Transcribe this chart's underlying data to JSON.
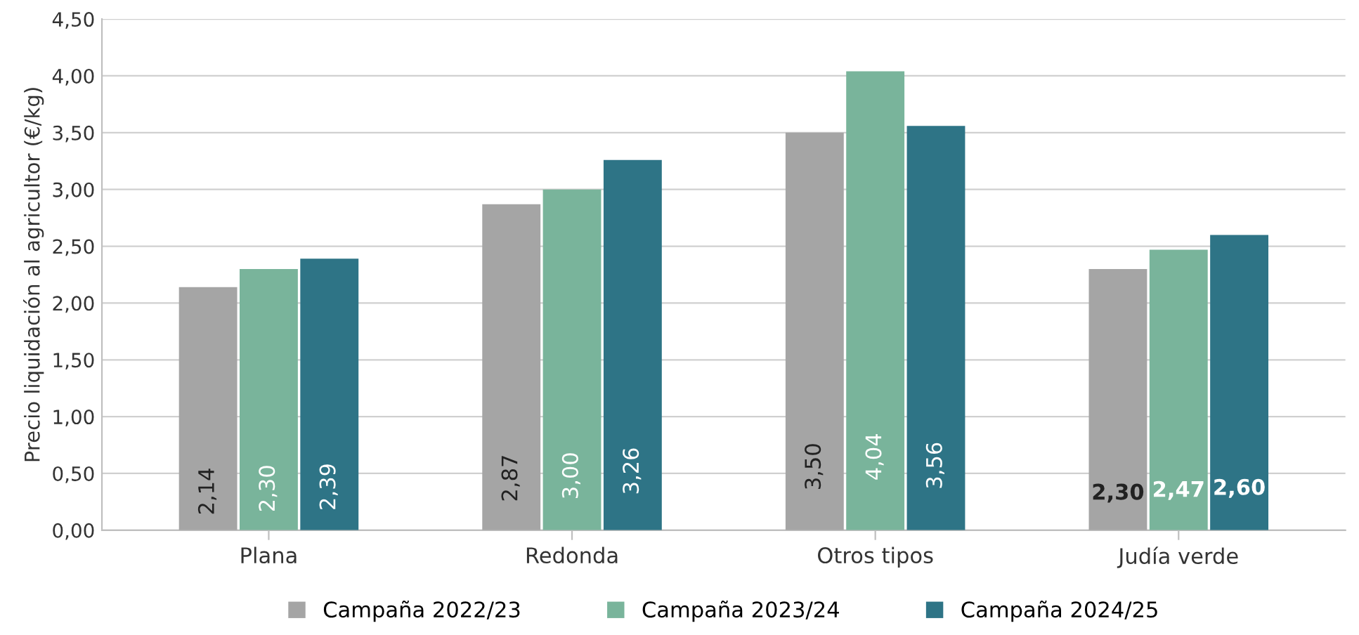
{
  "chart_data": {
    "type": "bar",
    "ylabel": "Precio liquidación al agricultor (€/kg)",
    "categories": [
      "Plana",
      "Redonda",
      "Otros tipos",
      "Judía verde"
    ],
    "series": [
      {
        "name": "Campaña 2022/23",
        "color": "#a5a5a5",
        "values": [
          2.14,
          2.87,
          3.5,
          2.3
        ],
        "value_labels": [
          "2,14",
          "2,87",
          "3,50",
          "2,30"
        ]
      },
      {
        "name": "Campaña 2023/24",
        "color": "#79b49b",
        "values": [
          2.3,
          3.0,
          4.04,
          2.47
        ],
        "value_labels": [
          "2,30",
          "3,00",
          "4,04",
          "2,47"
        ]
      },
      {
        "name": "Campaña 2024/25",
        "color": "#2e7486",
        "values": [
          2.39,
          3.26,
          3.56,
          2.6
        ],
        "value_labels": [
          "2,39",
          "3,26",
          "3,56",
          "2,60"
        ]
      }
    ],
    "ylim": [
      0,
      4.5
    ],
    "yticks": [
      {
        "value": 0,
        "label": "0,00"
      },
      {
        "value": 0.5,
        "label": "0,50"
      },
      {
        "value": 1,
        "label": "1,00"
      },
      {
        "value": 1.5,
        "label": "1,50"
      },
      {
        "value": 2,
        "label": "2,00"
      },
      {
        "value": 2.5,
        "label": "2,50"
      },
      {
        "value": 3,
        "label": "3,00"
      },
      {
        "value": 3.5,
        "label": "3,50"
      },
      {
        "value": 4,
        "label": "4,00"
      },
      {
        "value": 4.5,
        "label": "4,50"
      }
    ],
    "grid": "y",
    "legend": "bottom"
  }
}
